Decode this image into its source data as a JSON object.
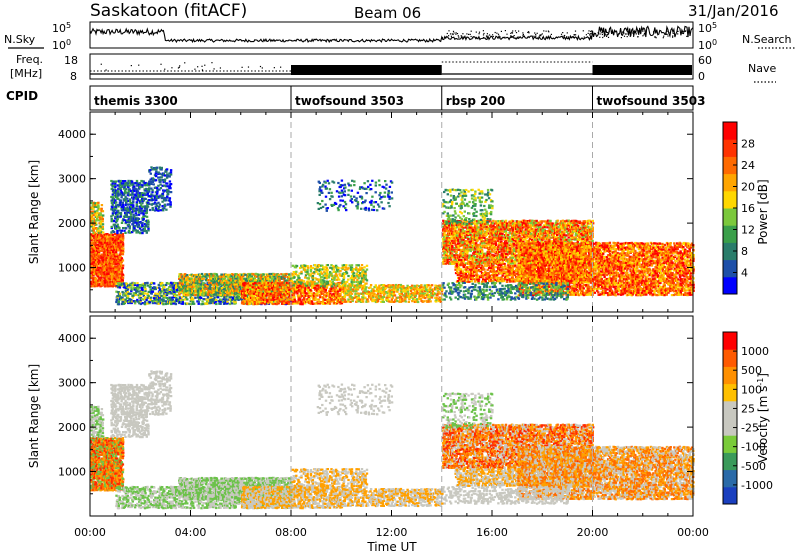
{
  "header": {
    "station": "Saskatoon (fitACF)",
    "beam": "Beam 06",
    "date": "31/Jan/2016"
  },
  "strip1": {
    "left_label": "N.Sky",
    "right_label": "N.Search",
    "left_ticks": [
      "10^5",
      "10^0"
    ],
    "right_ticks": [
      "10^5",
      "10^0"
    ]
  },
  "strip2": {
    "left_label_top": "Freq.",
    "left_label_bottom": "[MHz]",
    "right_label": "Nave",
    "left_ticks": [
      "18",
      "8"
    ],
    "right_ticks": [
      "60",
      "0"
    ]
  },
  "cpid": {
    "label": "CPID",
    "segments": [
      {
        "name": "themis 3300",
        "start": 0,
        "end": 8
      },
      {
        "name": "twofsound 3503",
        "start": 8,
        "end": 14
      },
      {
        "name": "rbsp 200",
        "start": 14,
        "end": 20
      },
      {
        "name": "twofsound 3503",
        "start": 20,
        "end": 24
      }
    ]
  },
  "chart_data": [
    {
      "type": "heatmap",
      "ylabel": "Slant Range [km]",
      "xlabel": "",
      "y_ticks": [
        "1000",
        "2000",
        "3000",
        "4000"
      ],
      "colorbar_label": "Power [dB]",
      "colorbar_ticks": [
        "28",
        "24",
        "20",
        "16",
        "12",
        "8",
        "4"
      ],
      "colorbar_colors": [
        "#0000ff",
        "#1d4fa8",
        "#2a7d6b",
        "#3a9f4a",
        "#7bc83c",
        "#ffd700",
        "#ffa500",
        "#ff6a00",
        "#ff3300",
        "#ff0000"
      ]
    },
    {
      "type": "heatmap",
      "ylabel": "Slant Range [km]",
      "xlabel": "Time UT",
      "y_ticks": [
        "1000",
        "2000",
        "3000",
        "4000"
      ],
      "x_ticks": [
        "00:00",
        "04:00",
        "08:00",
        "12:00",
        "16:00",
        "20:00",
        "00:00"
      ],
      "colorbar_label": "Velocity [m s^-1]",
      "colorbar_ticks": [
        "1000",
        "500",
        "100",
        "25",
        "-25",
        "-100",
        "-500",
        "-1000"
      ],
      "colorbar_colors": [
        "#1a3fbf",
        "#2a6aa8",
        "#3a9a5a",
        "#7acb3a",
        "#c8c8c0",
        "#c8c8c0",
        "#ffc000",
        "#ff9000",
        "#ff5a00",
        "#ff0000"
      ]
    }
  ]
}
